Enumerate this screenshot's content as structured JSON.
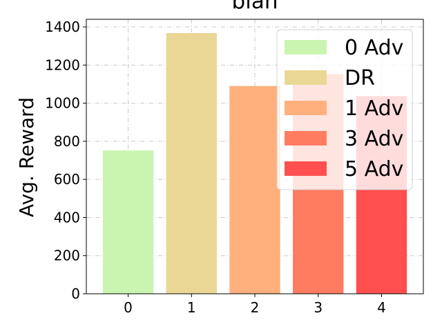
{
  "chart_data": {
    "type": "bar",
    "title": "blah",
    "ylabel": "Avg. Reward",
    "xlabel": "",
    "categories": [
      "0",
      "1",
      "2",
      "3",
      "4"
    ],
    "values": [
      752,
      1368,
      1090,
      1153,
      1037
    ],
    "colors": [
      "#c9f5b1",
      "#ead796",
      "#ffb07c",
      "#ff7c61",
      "#ff4f4f"
    ],
    "ylim": [
      0,
      1440
    ],
    "yticks": [
      0,
      200,
      400,
      600,
      800,
      1000,
      1200,
      1400
    ],
    "grid": true,
    "legend": {
      "placement": "top-right",
      "entries": [
        {
          "label": "0 Adv",
          "color": "#c9f5b1"
        },
        {
          "label": "DR",
          "color": "#ead796"
        },
        {
          "label": "1 Adv",
          "color": "#ffb07c"
        },
        {
          "label": "3 Adv",
          "color": "#ff7c61"
        },
        {
          "label": "5 Adv",
          "color": "#ff4f4f"
        }
      ]
    }
  }
}
